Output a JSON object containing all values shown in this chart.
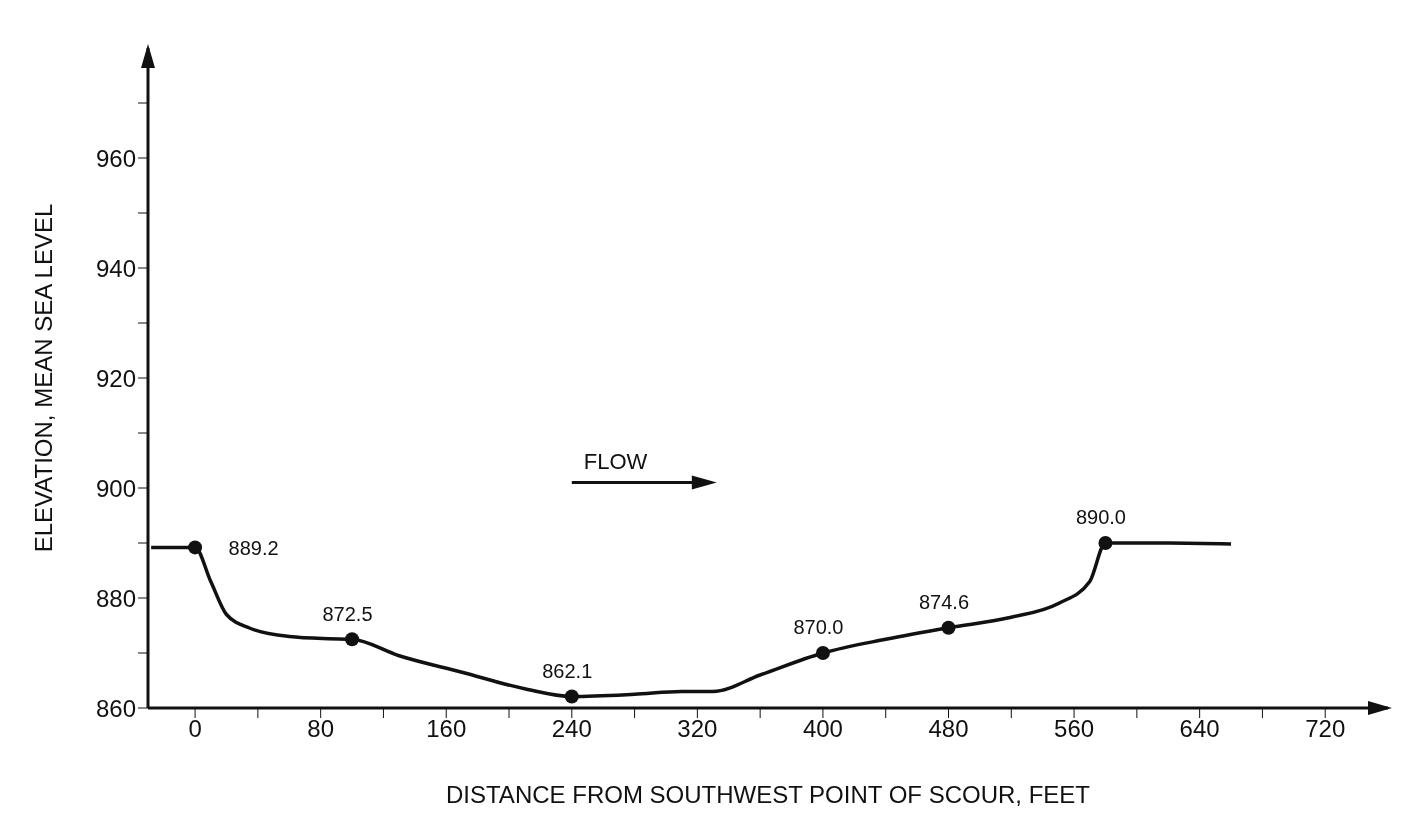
{
  "chart_data": {
    "type": "line",
    "xlabel": "DISTANCE FROM SOUTHWEST POINT OF SCOUR, FEET",
    "ylabel": "ELEVATION, MEAN SEA LEVEL",
    "annotations": [
      "FLOW"
    ],
    "xlim": [
      -30,
      760
    ],
    "ylim": [
      860,
      980
    ],
    "xticks": [
      0,
      {
        "value": 40,
        "label": null
      },
      80,
      {
        "value": 120,
        "label": null
      },
      160,
      {
        "value": 200,
        "label": null
      },
      240,
      {
        "value": 280,
        "label": null
      },
      320,
      {
        "value": 360,
        "label": null
      },
      400,
      {
        "value": 440,
        "label": null
      },
      480,
      {
        "value": 520,
        "label": null
      },
      560,
      {
        "value": 600,
        "label": null
      },
      640,
      {
        "value": 680,
        "label": null
      },
      720
    ],
    "yticks": [
      860,
      {
        "value": 870,
        "label": null
      },
      880,
      {
        "value": 890,
        "label": null
      },
      900,
      {
        "value": 910,
        "label": null
      },
      920,
      {
        "value": 930,
        "label": null
      },
      940,
      {
        "value": 950,
        "label": null
      },
      960,
      {
        "value": 970,
        "label": null
      }
    ],
    "series": [
      {
        "type": "line",
        "marker": "none",
        "color": "#111111",
        "x": [
          -28,
          0,
          10,
          20,
          35,
          60,
          85,
          100,
          130,
          170,
          210,
          240,
          280,
          310,
          330,
          360,
          400,
          440,
          480,
          520,
          550,
          570,
          580,
          620,
          660
        ],
        "values": [
          889.2,
          889.2,
          883,
          877,
          874.5,
          873,
          872.6,
          872.5,
          869.5,
          866.5,
          863.5,
          862.1,
          862.5,
          863,
          863,
          866,
          870,
          872.5,
          874.6,
          876.5,
          879,
          883,
          890,
          890,
          889.8
        ]
      },
      {
        "type": "scatter",
        "marker": "circle",
        "color": "#111111",
        "x": [
          0,
          100,
          240,
          400,
          480,
          580
        ],
        "values": [
          889.2,
          872.5,
          862.1,
          870.0,
          874.6,
          890.0
        ],
        "value_labels": [
          "889.2",
          "872.5",
          "862.1",
          "870.0",
          "874.6",
          "890.0"
        ]
      }
    ]
  }
}
